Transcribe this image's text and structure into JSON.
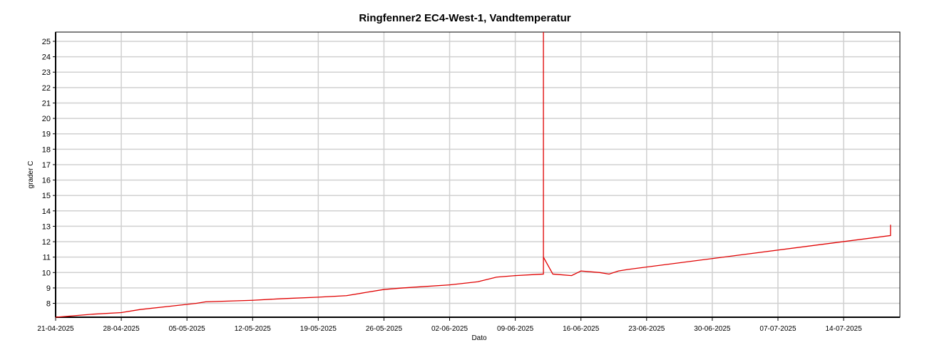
{
  "chart_data": {
    "type": "line",
    "title": "Ringfenner2 EC4-West-1, Vandtemperatur",
    "x_label": "Dato",
    "y_label": "grader C",
    "x": [
      "21-04-2025",
      "23-04-2025",
      "25-04-2025",
      "28-04-2025",
      "30-04-2025",
      "03-05-2025",
      "06-05-2025",
      "07-05-2025",
      "12-05-2025",
      "15-05-2025",
      "19-05-2025",
      "22-05-2025",
      "24-05-2025",
      "26-05-2025",
      "28-05-2025",
      "02-06-2025",
      "05-06-2025",
      "07-06-2025",
      "09-06-2025",
      "12-06-2025",
      "12-06-2025",
      "12-06-2025",
      "13-06-2025",
      "15-06-2025",
      "16-06-2025",
      "18-06-2025",
      "19-06-2025",
      "20-06-2025",
      "21-06-2025",
      "19-07-2025",
      "19-07-2025",
      "19-07-2025"
    ],
    "series": [
      {
        "name": "Vandtemperatur",
        "color": "#e00000",
        "values": [
          7.1,
          7.2,
          7.3,
          7.4,
          7.6,
          7.8,
          8.0,
          8.1,
          8.2,
          8.3,
          8.4,
          8.5,
          8.7,
          8.9,
          9.0,
          9.2,
          9.4,
          9.7,
          9.8,
          9.9,
          25.6,
          11.0,
          9.9,
          9.8,
          10.1,
          10.0,
          9.9,
          10.1,
          10.2,
          12.4,
          13.1,
          12.4
        ]
      }
    ],
    "xlim": [
      "21-04-2025",
      "20-07-2025"
    ],
    "xticks": [
      "21-04-2025",
      "28-04-2025",
      "05-05-2025",
      "12-05-2025",
      "19-05-2025",
      "26-05-2025",
      "02-06-2025",
      "09-06-2025",
      "16-06-2025",
      "23-06-2025",
      "30-06-2025",
      "07-07-2025",
      "14-07-2025"
    ],
    "ylim": [
      7.1,
      25.6
    ],
    "yticks": [
      8,
      9,
      10,
      11,
      12,
      13,
      14,
      15,
      16,
      17,
      18,
      19,
      20,
      21,
      22,
      23,
      24,
      25
    ],
    "grid": true
  }
}
